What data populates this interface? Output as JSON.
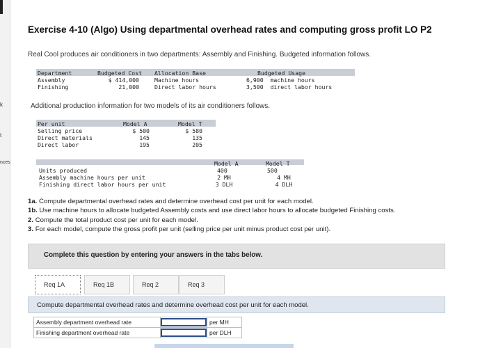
{
  "sidebar": {
    "fragments": [
      "k",
      "t",
      "nces"
    ]
  },
  "title": "Exercise 4-10 (Algo) Using departmental overhead rates and computing gross profit LO P2",
  "intro": "Real Cool produces air conditioners in two departments: Assembly and Finishing. Budgeted information follows.",
  "budget_table": {
    "headers": [
      "Department",
      "Budgeted Cost",
      "Allocation Base",
      "Budgeted Usage"
    ],
    "rows": [
      [
        "Assembly",
        "$ 414,000",
        "Machine hours",
        "6,900  machine hours"
      ],
      [
        "Finishing",
        "21,000",
        "Direct labor hours",
        "3,500  direct labor hours"
      ]
    ]
  },
  "additional": "Additional production information for two models of its air conditioners follows.",
  "model_table": {
    "headers": [
      "Per unit",
      "Model A",
      "Model T"
    ],
    "rows": [
      [
        "Selling price",
        "$ 500",
        "$ 580"
      ],
      [
        "Direct materials",
        "145",
        "135"
      ],
      [
        "Direct labor",
        "195",
        "205"
      ]
    ]
  },
  "usage_table": {
    "headers": [
      "Model A",
      "Model T"
    ],
    "rows": [
      [
        "Units produced",
        "400",
        "500"
      ],
      [
        "Assembly machine hours per unit",
        "2 MH",
        "4 MH"
      ],
      [
        "Finishing direct labor hours per unit",
        "3 DLH",
        "4 DLH"
      ]
    ]
  },
  "instructions": [
    {
      "num": "1a.",
      "text": "Compute departmental overhead rates and determine overhead cost per unit for each model."
    },
    {
      "num": "1b.",
      "text": "Use machine hours to allocate budgeted Assembly costs and use direct labor hours to allocate budgeted Finishing costs."
    },
    {
      "num": "2.",
      "text": "Compute the total product cost per unit for each model."
    },
    {
      "num": "3.",
      "text": "For each model, compute the gross profit per unit (selling price per unit minus product cost per unit)."
    }
  ],
  "banner": "Complete this question by entering your answers in the tabs below.",
  "tabs": [
    "Req 1A",
    "Req 1B",
    "Req 2",
    "Req 3"
  ],
  "question": "Compute departmental overhead rates and determine overhead cost per unit for each model.",
  "answer_rows": [
    {
      "label": "Assembly department overhead rate",
      "value": "",
      "unit": "per MH"
    },
    {
      "label": "Finishing department overhead rate",
      "value": "",
      "unit": "per DLH"
    }
  ]
}
